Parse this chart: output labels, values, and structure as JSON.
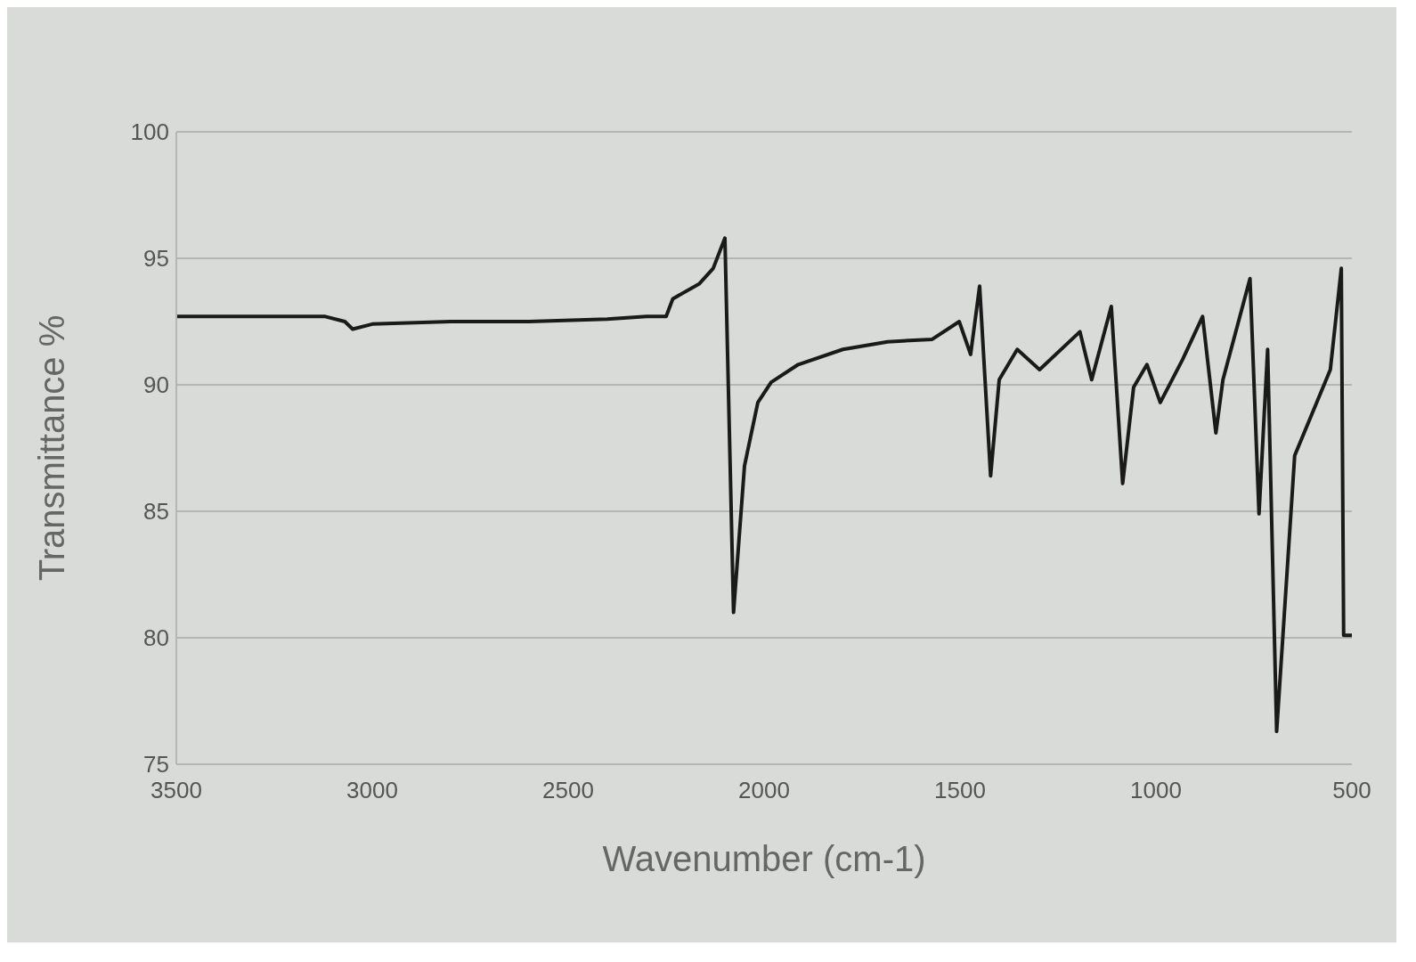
{
  "chart_data": {
    "type": "line",
    "xlabel": "Wavenumber (cm-1)",
    "ylabel": "Transmittance %",
    "x": [
      3500,
      3300,
      3120,
      3070,
      3050,
      3000,
      2800,
      2600,
      2400,
      2300,
      2250,
      2233,
      2165,
      2130,
      2100,
      2078,
      2050,
      2016,
      1982,
      1913,
      1799,
      1685,
      1571,
      1502,
      1473,
      1450,
      1422,
      1400,
      1354,
      1297,
      1194,
      1164,
      1114,
      1085,
      1057,
      1023,
      989,
      932,
      881,
      847,
      829,
      760,
      737,
      715,
      692,
      646,
      555,
      527,
      521,
      500
    ],
    "series": [
      {
        "color": "#1a1a1a",
        "values": [
          92.7,
          92.7,
          92.7,
          92.5,
          92.2,
          92.4,
          92.5,
          92.5,
          92.6,
          92.7,
          92.7,
          93.4,
          94.0,
          94.6,
          95.8,
          81.0,
          86.8,
          89.3,
          90.1,
          90.8,
          91.4,
          91.7,
          91.8,
          92.5,
          91.2,
          93.9,
          86.4,
          90.2,
          91.4,
          90.6,
          92.1,
          90.2,
          93.1,
          86.1,
          89.9,
          90.8,
          89.3,
          91.0,
          92.7,
          88.1,
          90.2,
          94.2,
          84.9,
          91.4,
          76.3,
          87.2,
          90.6,
          94.6,
          80.1,
          80.1
        ]
      }
    ],
    "xlim": [
      3500,
      500
    ],
    "xticks": [
      3500,
      3000,
      2500,
      2000,
      1500,
      1000,
      500
    ],
    "ylim": [
      75,
      100
    ],
    "yticks": [
      75,
      80,
      85,
      90,
      95,
      100
    ],
    "grid": "y",
    "marker": "none",
    "line_style": "solid"
  }
}
